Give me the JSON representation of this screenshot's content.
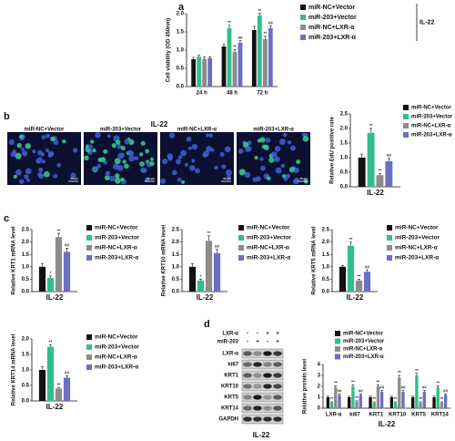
{
  "panel_labels": [
    "a",
    "b",
    "c",
    "d"
  ],
  "microscopy": {
    "title": "IL-22",
    "images": [
      "miR-NC+Vector",
      "miR-203+Vector",
      "miR-NC+LXR-α",
      "miR-203+LXR-α"
    ],
    "scale_bar": "50 μm"
  },
  "blot": {
    "treatments": [
      {
        "label": "LXR-α",
        "signs": [
          "-",
          "-",
          "+",
          "+"
        ]
      },
      {
        "label": "miR-203",
        "signs": [
          "-",
          "+",
          "-",
          "+"
        ]
      }
    ],
    "rows": [
      "LXR-α",
      "ki67",
      "KRT1",
      "KRT10",
      "KRT5",
      "KRT14",
      "GAPDH"
    ],
    "caption": "IL-22"
  },
  "chart_data": [
    {
      "type": "bar",
      "ylabel": "Cell viability (OD 450nm)",
      "legend_title": "IL-22",
      "categories": [
        "24 h",
        "48 h",
        "72 h"
      ],
      "ylim": [
        0,
        2
      ],
      "yticks": [
        {
          "value": 0,
          "label": "0.0"
        },
        0.5,
        {
          "value": 1,
          "label": "1.0"
        },
        1.5,
        {
          "value": 2,
          "label": "2.0"
        }
      ],
      "series": [
        {
          "name": "miR-NC+Vector",
          "color": "#111111",
          "values": [
            0.75,
            1.1,
            1.55
          ],
          "errors": [
            0.05,
            0.07,
            0.1
          ],
          "significance": [
            null,
            null,
            null
          ]
        },
        {
          "name": "miR-203+Vector",
          "color": "#2fbf8a",
          "values": [
            0.82,
            1.6,
            1.95
          ],
          "errors": [
            0.04,
            0.08,
            0.06
          ],
          "significance": [
            null,
            "**",
            "**"
          ]
        },
        {
          "name": "miR-NC+LXR-α",
          "color": "#8c8c8c",
          "values": [
            0.76,
            0.95,
            1.3
          ],
          "errors": [
            0.05,
            0.07,
            0.08
          ],
          "significance": [
            null,
            "**",
            "**"
          ]
        },
        {
          "name": "miR-203+LXR-α",
          "color": "#6a6fc4",
          "values": [
            0.78,
            1.2,
            1.6
          ],
          "errors": [
            0.04,
            0.06,
            0.07
          ],
          "significance": [
            null,
            "##",
            "##"
          ]
        }
      ]
    },
    {
      "type": "bar",
      "ylabel": "Relative EdU positive rate",
      "categories": [
        "IL-22"
      ],
      "ylim": [
        0,
        2.5
      ],
      "yticks": [
        {
          "value": 0,
          "label": "0.0"
        },
        0.5,
        {
          "value": 1,
          "label": "1.0"
        },
        1.5,
        {
          "value": 2,
          "label": "2.0"
        },
        2.5
      ],
      "series": [
        {
          "name": "miR-NC+Vector",
          "color": "#111111",
          "values": [
            1.0
          ],
          "errors": [
            0.12
          ],
          "significance": [
            null
          ]
        },
        {
          "name": "miR-203+Vector",
          "color": "#2fbf8a",
          "values": [
            1.85
          ],
          "errors": [
            0.15
          ],
          "significance": [
            "**"
          ]
        },
        {
          "name": "miR-NC+LXR-α",
          "color": "#8c8c8c",
          "values": [
            0.4
          ],
          "errors": [
            0.06
          ],
          "significance": [
            "**"
          ]
        },
        {
          "name": "miR-203+LXR-α",
          "color": "#6a6fc4",
          "values": [
            0.88
          ],
          "errors": [
            0.1
          ],
          "significance": [
            "##"
          ]
        }
      ]
    },
    {
      "type": "bar",
      "ylabel": "Relative KRT1 mRNA level",
      "categories": [
        "IL-22"
      ],
      "ylim": [
        0,
        2.5
      ],
      "yticks": [
        {
          "value": 0,
          "label": "0.0"
        },
        0.5,
        {
          "value": 1,
          "label": "1.0"
        },
        1.5,
        {
          "value": 2,
          "label": "2.0"
        },
        2.5
      ],
      "series": [
        {
          "name": "miR-NC+Vector",
          "color": "#111111",
          "values": [
            1.0
          ],
          "errors": [
            0.12
          ],
          "significance": [
            null
          ]
        },
        {
          "name": "miR-203+Vector",
          "color": "#2fbf8a",
          "values": [
            0.55
          ],
          "errors": [
            0.08
          ],
          "significance": [
            "*"
          ]
        },
        {
          "name": "miR-NC+LXR-α",
          "color": "#8c8c8c",
          "values": [
            2.2
          ],
          "errors": [
            0.15
          ],
          "significance": [
            "**"
          ]
        },
        {
          "name": "miR-203+LXR-α",
          "color": "#6a6fc4",
          "values": [
            1.6
          ],
          "errors": [
            0.15
          ],
          "significance": [
            "##"
          ]
        }
      ]
    },
    {
      "type": "bar",
      "ylabel": "Relative KRT10 mRNA level",
      "categories": [
        "IL-22"
      ],
      "ylim": [
        0,
        2.5
      ],
      "yticks": [
        {
          "value": 0,
          "label": "0.0"
        },
        0.5,
        {
          "value": 1,
          "label": "1.0"
        },
        1.5,
        {
          "value": 2,
          "label": "2.0"
        },
        2.5
      ],
      "series": [
        {
          "name": "miR-NC+Vector",
          "color": "#111111",
          "values": [
            1.0
          ],
          "errors": [
            0.12
          ],
          "significance": [
            null
          ]
        },
        {
          "name": "miR-203+Vector",
          "color": "#2fbf8a",
          "values": [
            0.45
          ],
          "errors": [
            0.05
          ],
          "significance": [
            "*"
          ]
        },
        {
          "name": "miR-NC+LXR-α",
          "color": "#8c8c8c",
          "values": [
            2.05
          ],
          "errors": [
            0.2
          ],
          "significance": [
            "**"
          ]
        },
        {
          "name": "miR-203+LXR-α",
          "color": "#6a6fc4",
          "values": [
            1.55
          ],
          "errors": [
            0.15
          ],
          "significance": [
            "##"
          ]
        }
      ]
    },
    {
      "type": "bar",
      "ylabel": "Relative KRT5 mRNA level",
      "categories": [
        "IL-22"
      ],
      "ylim": [
        0,
        2.5
      ],
      "yticks": [
        {
          "value": 0,
          "label": "0.0"
        },
        0.5,
        {
          "value": 1,
          "label": "1.0"
        },
        1.5,
        {
          "value": 2,
          "label": "2.0"
        },
        2.5
      ],
      "series": [
        {
          "name": "miR-NC+Vector",
          "color": "#111111",
          "values": [
            1.0
          ],
          "errors": [
            0.05
          ],
          "significance": [
            null
          ]
        },
        {
          "name": "miR-203+Vector",
          "color": "#2fbf8a",
          "values": [
            1.85
          ],
          "errors": [
            0.15
          ],
          "significance": [
            "**"
          ]
        },
        {
          "name": "miR-NC+LXR-α",
          "color": "#8c8c8c",
          "values": [
            0.45
          ],
          "errors": [
            0.05
          ],
          "significance": [
            "**"
          ]
        },
        {
          "name": "miR-203+LXR-α",
          "color": "#6a6fc4",
          "values": [
            0.8
          ],
          "errors": [
            0.08
          ],
          "significance": [
            "##"
          ]
        }
      ]
    },
    {
      "type": "bar",
      "ylabel": "Relative KRT14 mRNA level",
      "categories": [
        "IL-22"
      ],
      "ylim": [
        0,
        2
      ],
      "yticks": [
        {
          "value": 0,
          "label": "0.0"
        },
        0.5,
        {
          "value": 1,
          "label": "1.0"
        },
        1.5,
        {
          "value": 2,
          "label": "2.0"
        }
      ],
      "series": [
        {
          "name": "miR-NC+Vector",
          "color": "#111111",
          "values": [
            1.0
          ],
          "errors": [
            0.1
          ],
          "significance": [
            null
          ]
        },
        {
          "name": "miR-203+Vector",
          "color": "#2fbf8a",
          "values": [
            1.75
          ],
          "errors": [
            0.07
          ],
          "significance": [
            "**"
          ]
        },
        {
          "name": "miR-NC+LXR-α",
          "color": "#8c8c8c",
          "values": [
            0.4
          ],
          "errors": [
            0.03
          ],
          "significance": [
            "**"
          ]
        },
        {
          "name": "miR-203+LXR-α",
          "color": "#6a6fc4",
          "values": [
            0.75
          ],
          "errors": [
            0.06
          ],
          "significance": [
            "##"
          ]
        }
      ]
    },
    {
      "type": "bar",
      "ylabel": "Relative protein level",
      "x_title": "IL-22",
      "categories": [
        "LXR-α",
        "ki67",
        "KRT1",
        "KRT10",
        "KRT5",
        "KRT14"
      ],
      "ylim": [
        0,
        4
      ],
      "yticks": [
        0,
        1,
        2,
        3,
        4
      ],
      "series": [
        {
          "name": "miR-NC+Vector",
          "color": "#111111",
          "values": [
            1,
            1,
            1,
            1,
            1,
            1
          ],
          "errors": [
            0.1,
            0.1,
            0.1,
            0.1,
            0.1,
            0.1
          ],
          "significance": [
            null,
            null,
            null,
            null,
            null,
            null
          ]
        },
        {
          "name": "miR-203+Vector",
          "color": "#2fbf8a",
          "values": [
            0.5,
            2.0,
            0.5,
            0.5,
            3.0,
            1.9
          ],
          "errors": [
            0.08,
            0.15,
            0.08,
            0.08,
            0.2,
            0.15
          ],
          "significance": [
            "**",
            "**",
            "**",
            "**",
            "**",
            "**"
          ]
        },
        {
          "name": "miR-NC+LXR-α",
          "color": "#8c8c8c",
          "values": [
            1.9,
            0.6,
            2.0,
            2.8,
            0.5,
            0.5
          ],
          "errors": [
            0.15,
            0.08,
            0.15,
            0.2,
            0.08,
            0.08
          ],
          "significance": [
            "**",
            "**",
            "**",
            "**",
            "**",
            "**"
          ]
        },
        {
          "name": "miR-203+LXR-α",
          "color": "#6a6fc4",
          "values": [
            1.2,
            1.2,
            1.5,
            1.5,
            1.5,
            1.2
          ],
          "errors": [
            0.1,
            0.1,
            0.12,
            0.12,
            0.12,
            0.1
          ],
          "significance": [
            "##",
            "##",
            "##",
            "##",
            "##",
            "##"
          ]
        }
      ]
    }
  ]
}
